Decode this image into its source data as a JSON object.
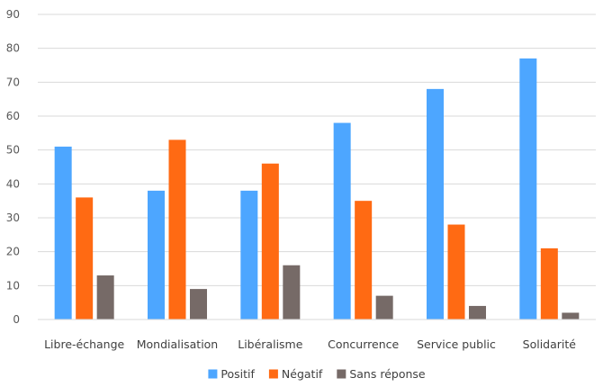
{
  "chart_data": {
    "type": "bar",
    "categories": [
      "Libre-échange",
      "Mondialisation",
      "Libéralisme",
      "Concurrence",
      "Service public",
      "Solidarité"
    ],
    "series": [
      {
        "name": "Positif",
        "color": "#4da6ff",
        "values": [
          51,
          38,
          38,
          58,
          68,
          77
        ]
      },
      {
        "name": "Négatif",
        "color": "#ff6a13",
        "values": [
          36,
          53,
          46,
          35,
          28,
          21
        ]
      },
      {
        "name": "Sans réponse",
        "color": "#766a67",
        "values": [
          13,
          9,
          16,
          7,
          4,
          2
        ]
      }
    ],
    "yticks": [
      "0",
      "10",
      "20",
      "30",
      "40",
      "50",
      "60",
      "70",
      "80",
      "90"
    ],
    "ylim": [
      0,
      90
    ],
    "grid": true,
    "legend_position": "bottom",
    "title": "",
    "xlabel": "",
    "ylabel": ""
  }
}
